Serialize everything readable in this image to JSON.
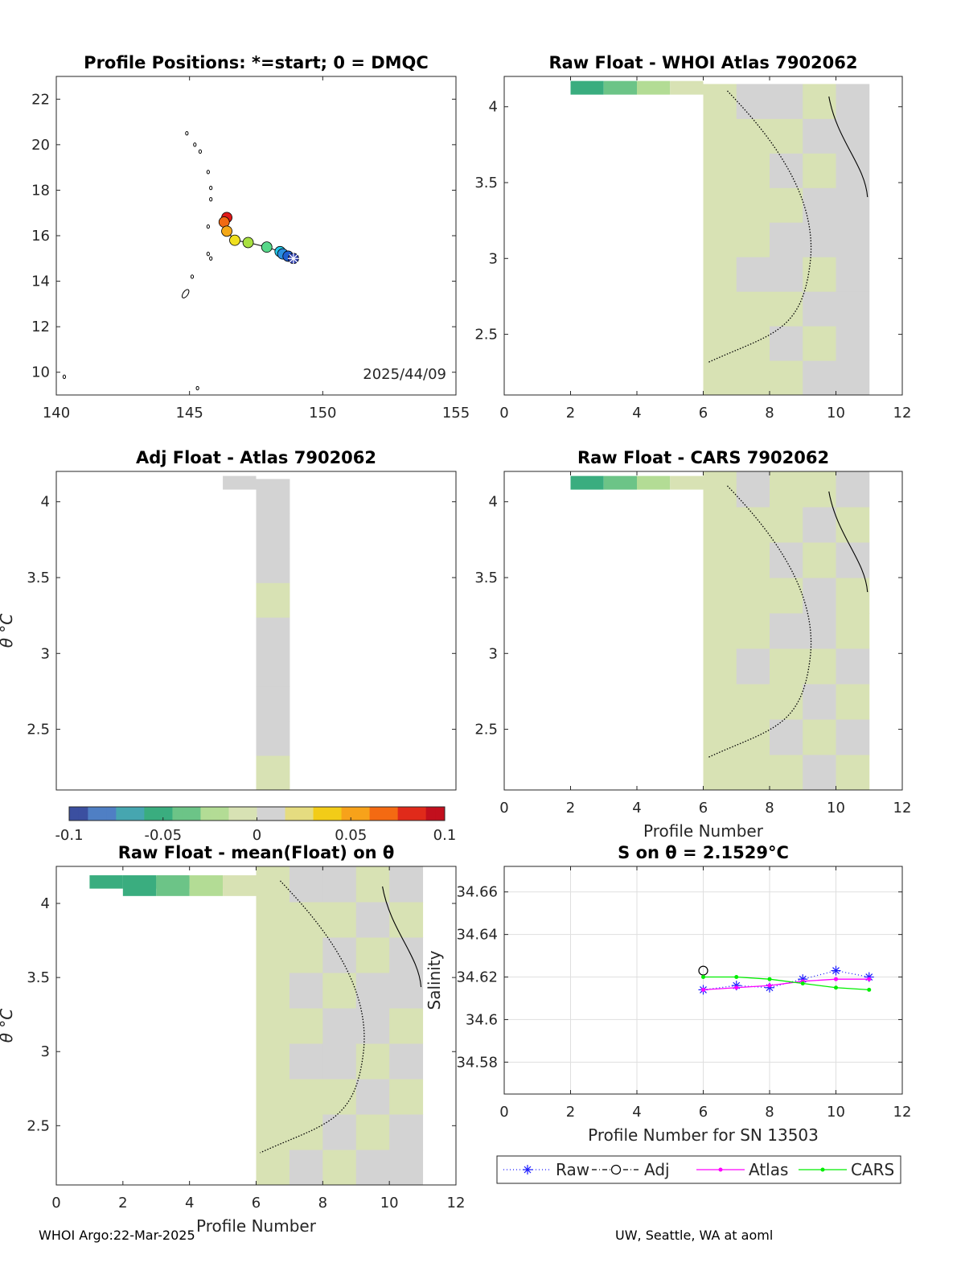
{
  "footer": {
    "left": "WHOI Argo:22-Mar-2025",
    "right": "UW, Seattle, WA at aoml"
  },
  "colorbar": {
    "ticks": [
      "-0.1",
      "-0.05",
      "0",
      "0.05",
      "0.1"
    ],
    "range": [
      -0.1,
      0.1
    ],
    "colormap": [
      "#3b4fa0",
      "#4f7fc4",
      "#46a6b0",
      "#3aad7f",
      "#6cc487",
      "#b3dc95",
      "#d8e2b4",
      "#d3d3d3",
      "#e5dc80",
      "#f2cc18",
      "#f7a21a",
      "#f46a12",
      "#e02a1a",
      "#c20f1d"
    ]
  },
  "chart_data": [
    {
      "type": "scatter",
      "panel": "map",
      "title": "Profile Positions: *=start; 0 = DMQC",
      "xlim": [
        140,
        155
      ],
      "ylim": [
        9,
        23
      ],
      "xticks": [
        "140",
        "145",
        "150",
        "155"
      ],
      "yticks": [
        "10",
        "12",
        "14",
        "16",
        "18",
        "20",
        "22"
      ],
      "annotation": "2025/44/09",
      "track": [
        {
          "lon": 148.9,
          "lat": 15.0,
          "color": "#3040b0",
          "marker": "star"
        },
        {
          "lon": 148.7,
          "lat": 15.1,
          "color": "#1f5fd0"
        },
        {
          "lon": 148.5,
          "lat": 15.2,
          "color": "#2a8fe0"
        },
        {
          "lon": 148.4,
          "lat": 15.3,
          "color": "#22c8e8"
        },
        {
          "lon": 147.9,
          "lat": 15.5,
          "color": "#58d88a"
        },
        {
          "lon": 147.2,
          "lat": 15.7,
          "color": "#a8e040"
        },
        {
          "lon": 146.7,
          "lat": 15.8,
          "color": "#f0e020"
        },
        {
          "lon": 146.4,
          "lat": 16.2,
          "color": "#f4a818"
        },
        {
          "lon": 146.3,
          "lat": 16.6,
          "color": "#f06a14"
        },
        {
          "lon": 146.4,
          "lat": 16.8,
          "color": "#e01818"
        }
      ],
      "islands": [
        {
          "lon": 145.7,
          "lat": 15.2
        },
        {
          "lon": 145.8,
          "lat": 15.0
        },
        {
          "lon": 145.1,
          "lat": 14.2
        },
        {
          "lon": 145.7,
          "lat": 16.4
        },
        {
          "lon": 145.8,
          "lat": 18.1
        },
        {
          "lon": 145.8,
          "lat": 17.6
        },
        {
          "lon": 145.7,
          "lat": 18.8
        },
        {
          "lon": 145.4,
          "lat": 19.7
        },
        {
          "lon": 145.2,
          "lat": 20.0
        },
        {
          "lon": 144.9,
          "lat": 20.5
        },
        {
          "lon": 140.3,
          "lat": 9.8
        },
        {
          "lon": 145.3,
          "lat": 9.3
        }
      ]
    },
    {
      "type": "heatmap",
      "panel": "whoi",
      "title": "Raw Float - WHOI Atlas  7902062",
      "xlim": [
        0,
        12
      ],
      "ylim": [
        2.1,
        4.2
      ],
      "xticks": [
        "0",
        "2",
        "4",
        "6",
        "8",
        "10",
        "12"
      ],
      "yticks": [
        "2.5",
        "3",
        "3.5",
        "4"
      ],
      "top_row": [
        [
          2,
          -0.06
        ],
        [
          3,
          -0.045
        ],
        [
          4,
          -0.025
        ],
        [
          5,
          -0.012
        ]
      ],
      "columns": [
        6,
        7,
        8,
        9,
        10
      ],
      "column_values": [
        -0.006,
        -0.004,
        0.0,
        0.001,
        0.004
      ],
      "col_top": 4.15
    },
    {
      "type": "heatmap",
      "panel": "adj",
      "title": "Adj Float - Atlas  7902062",
      "xlim": [
        0,
        12
      ],
      "ylim": [
        2.1,
        4.2
      ],
      "yticks": [
        "2.5",
        "3",
        "3.5",
        "4"
      ],
      "ylabel": "θ °C",
      "top_row": [
        [
          5,
          0.003
        ]
      ],
      "columns": [
        6
      ],
      "column_values": [
        0.003
      ],
      "col_top": 4.15
    },
    {
      "type": "heatmap",
      "panel": "cars",
      "title": "Raw Float - CARS  7902062",
      "xlim": [
        0,
        12
      ],
      "ylim": [
        2.1,
        4.2
      ],
      "xticks": [
        "0",
        "2",
        "4",
        "6",
        "8",
        "10",
        "12"
      ],
      "yticks": [
        "2.5",
        "3",
        "3.5",
        "4"
      ],
      "xlabel": "Profile Number",
      "top_row": [
        [
          2,
          -0.06
        ],
        [
          3,
          -0.045
        ],
        [
          4,
          -0.025
        ],
        [
          5,
          -0.012
        ]
      ],
      "columns": [
        6,
        7,
        8,
        9,
        10
      ],
      "column_values": [
        -0.007,
        -0.003,
        -0.002,
        0.0,
        -0.001
      ],
      "col_top": 4.2
    },
    {
      "type": "heatmap",
      "panel": "mean",
      "title": "Raw Float - mean(Float) on θ",
      "xlim": [
        0,
        12
      ],
      "ylim": [
        2.1,
        4.25
      ],
      "xticks": [
        "0",
        "2",
        "4",
        "6",
        "8",
        "10",
        "12"
      ],
      "yticks": [
        "2.5",
        "3",
        "3.5",
        "4"
      ],
      "xlabel": "Profile Number",
      "ylabel": "θ °C",
      "top_row": [
        [
          1,
          -0.055
        ],
        [
          2,
          -0.06
        ],
        [
          3,
          -0.04
        ],
        [
          4,
          -0.02
        ],
        [
          5,
          -0.008
        ]
      ],
      "columns": [
        6,
        7,
        8,
        9,
        10
      ],
      "column_values": [
        -0.006,
        -0.002,
        0.0,
        0.0,
        0.001
      ],
      "col_top": 4.25
    },
    {
      "type": "line",
      "panel": "salinity",
      "title": "S on θ = 2.1529°C",
      "xlabel": "Profile Number for SN 13503",
      "ylabel": "Salinity",
      "xlim": [
        0,
        12
      ],
      "ylim": [
        34.565,
        34.672
      ],
      "xticks": [
        "0",
        "2",
        "4",
        "6",
        "8",
        "10",
        "12"
      ],
      "yticks": [
        "34.58",
        "34.6",
        "34.62",
        "34.64",
        "34.66"
      ],
      "series": [
        {
          "name": "Raw",
          "color": "#1a1aff",
          "x": [
            6,
            7,
            8,
            9,
            10,
            11
          ],
          "values": [
            34.614,
            34.616,
            34.615,
            34.619,
            34.623,
            34.62
          ]
        },
        {
          "name": "Adj",
          "color": "#000000",
          "x": [
            6
          ],
          "values": [
            34.623
          ]
        },
        {
          "name": "Atlas",
          "color": "#ff00ff",
          "x": [
            6,
            7,
            8,
            9,
            10,
            11
          ],
          "values": [
            34.614,
            34.615,
            34.616,
            34.618,
            34.619,
            34.619
          ]
        },
        {
          "name": "CARS",
          "color": "#00ee00",
          "x": [
            6,
            7,
            8,
            9,
            10,
            11
          ],
          "values": [
            34.62,
            34.62,
            34.619,
            34.617,
            34.615,
            34.614
          ]
        }
      ]
    }
  ]
}
